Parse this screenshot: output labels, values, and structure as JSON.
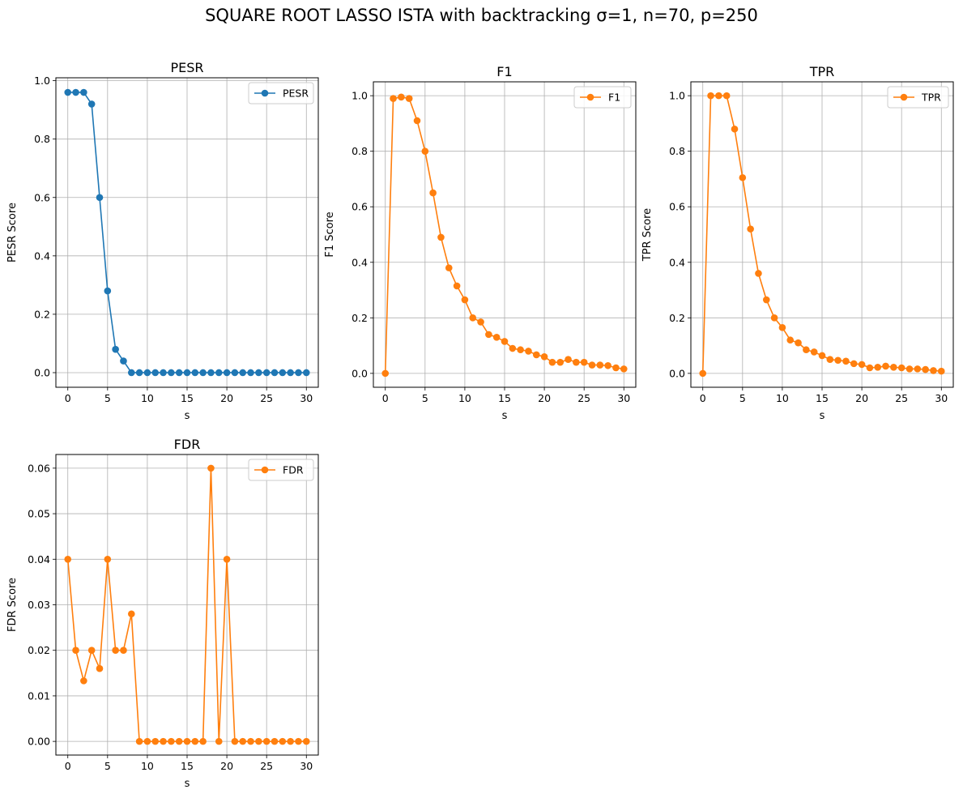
{
  "figure": {
    "suptitle": "SQUARE ROOT LASSO ISTA with backtracking σ=1, n=70, p=250"
  },
  "chart_data": [
    {
      "type": "line",
      "title": "PESR",
      "xlabel": "s",
      "ylabel": "PESR Score",
      "grid": true,
      "legend_position": "top-right",
      "xlim": [
        -1.5,
        31.5
      ],
      "ylim": [
        -0.05,
        1.01
      ],
      "xticks": [
        0,
        5,
        10,
        15,
        20,
        25,
        30
      ],
      "xtick_labels": [
        "0",
        "5",
        "10",
        "15",
        "20",
        "25",
        "30"
      ],
      "yticks": [
        0.0,
        0.2,
        0.4,
        0.6,
        0.8,
        1.0
      ],
      "ytick_labels": [
        "0.0",
        "0.2",
        "0.4",
        "0.6",
        "0.8",
        "1.0"
      ],
      "series": [
        {
          "name": "PESR",
          "color": "#1f77b4",
          "marker": "circle",
          "x": [
            0,
            1,
            2,
            3,
            4,
            5,
            6,
            7,
            8,
            9,
            10,
            11,
            12,
            13,
            14,
            15,
            16,
            17,
            18,
            19,
            20,
            21,
            22,
            23,
            24,
            25,
            26,
            27,
            28,
            29,
            30
          ],
          "y": [
            0.96,
            0.96,
            0.96,
            0.92,
            0.6,
            0.28,
            0.08,
            0.04,
            0,
            0,
            0,
            0,
            0,
            0,
            0,
            0,
            0,
            0,
            0,
            0,
            0,
            0,
            0,
            0,
            0,
            0,
            0,
            0,
            0,
            0,
            0
          ]
        }
      ]
    },
    {
      "type": "line",
      "title": "F1",
      "xlabel": "s",
      "ylabel": "F1 Score",
      "grid": true,
      "legend_position": "top-right",
      "xlim": [
        -1.5,
        31.5
      ],
      "ylim": [
        -0.05,
        1.05
      ],
      "xticks": [
        0,
        5,
        10,
        15,
        20,
        25,
        30
      ],
      "xtick_labels": [
        "0",
        "5",
        "10",
        "15",
        "20",
        "25",
        "30"
      ],
      "yticks": [
        0.0,
        0.2,
        0.4,
        0.6,
        0.8,
        1.0
      ],
      "ytick_labels": [
        "0.0",
        "0.2",
        "0.4",
        "0.6",
        "0.8",
        "1.0"
      ],
      "series": [
        {
          "name": "F1",
          "color": "#ff7f0e",
          "marker": "circle",
          "x": [
            0,
            1,
            2,
            3,
            4,
            5,
            6,
            7,
            8,
            9,
            10,
            11,
            12,
            13,
            14,
            15,
            16,
            17,
            18,
            19,
            20,
            21,
            22,
            23,
            24,
            25,
            26,
            27,
            28,
            29,
            30
          ],
          "y": [
            0.0,
            0.99,
            0.995,
            0.99,
            0.91,
            0.8,
            0.65,
            0.49,
            0.38,
            0.315,
            0.265,
            0.2,
            0.185,
            0.14,
            0.13,
            0.115,
            0.09,
            0.085,
            0.08,
            0.067,
            0.06,
            0.04,
            0.04,
            0.05,
            0.04,
            0.04,
            0.03,
            0.03,
            0.028,
            0.02,
            0.016
          ]
        }
      ]
    },
    {
      "type": "line",
      "title": "TPR",
      "xlabel": "s",
      "ylabel": "TPR Score",
      "grid": true,
      "legend_position": "top-right",
      "xlim": [
        -1.5,
        31.5
      ],
      "ylim": [
        -0.05,
        1.05
      ],
      "xticks": [
        0,
        5,
        10,
        15,
        20,
        25,
        30
      ],
      "xtick_labels": [
        "0",
        "5",
        "10",
        "15",
        "20",
        "25",
        "30"
      ],
      "yticks": [
        0.0,
        0.2,
        0.4,
        0.6,
        0.8,
        1.0
      ],
      "ytick_labels": [
        "0.0",
        "0.2",
        "0.4",
        "0.6",
        "0.8",
        "1.0"
      ],
      "series": [
        {
          "name": "TPR",
          "color": "#ff7f0e",
          "marker": "circle",
          "x": [
            0,
            1,
            2,
            3,
            4,
            5,
            6,
            7,
            8,
            9,
            10,
            11,
            12,
            13,
            14,
            15,
            16,
            17,
            18,
            19,
            20,
            21,
            22,
            23,
            24,
            25,
            26,
            27,
            28,
            29,
            30
          ],
          "y": [
            0.0,
            1.0,
            1.0,
            1.0,
            0.88,
            0.705,
            0.52,
            0.36,
            0.265,
            0.2,
            0.165,
            0.12,
            0.11,
            0.085,
            0.077,
            0.064,
            0.05,
            0.047,
            0.044,
            0.035,
            0.032,
            0.02,
            0.022,
            0.026,
            0.022,
            0.02,
            0.016,
            0.016,
            0.014,
            0.01,
            0.008
          ]
        }
      ]
    },
    {
      "type": "line",
      "title": "FDR",
      "xlabel": "s",
      "ylabel": "FDR Score",
      "grid": true,
      "legend_position": "top-right",
      "xlim": [
        -1.5,
        31.5
      ],
      "ylim": [
        -0.003,
        0.063
      ],
      "xticks": [
        0,
        5,
        10,
        15,
        20,
        25,
        30
      ],
      "xtick_labels": [
        "0",
        "5",
        "10",
        "15",
        "20",
        "25",
        "30"
      ],
      "yticks": [
        0.0,
        0.01,
        0.02,
        0.03,
        0.04,
        0.05,
        0.06
      ],
      "ytick_labels": [
        "0.00",
        "0.01",
        "0.02",
        "0.03",
        "0.04",
        "0.05",
        "0.06"
      ],
      "series": [
        {
          "name": "FDR",
          "color": "#ff7f0e",
          "marker": "circle",
          "x": [
            0,
            1,
            2,
            3,
            4,
            5,
            6,
            7,
            8,
            9,
            10,
            11,
            12,
            13,
            14,
            15,
            16,
            17,
            18,
            19,
            20,
            21,
            22,
            23,
            24,
            25,
            26,
            27,
            28,
            29,
            30
          ],
          "y": [
            0.04,
            0.02,
            0.0133,
            0.02,
            0.016,
            0.04,
            0.02,
            0.02,
            0.028,
            0,
            0,
            0,
            0,
            0,
            0,
            0,
            0,
            0,
            0.06,
            0,
            0.04,
            0,
            0,
            0,
            0,
            0,
            0,
            0,
            0,
            0,
            0
          ]
        }
      ]
    }
  ]
}
